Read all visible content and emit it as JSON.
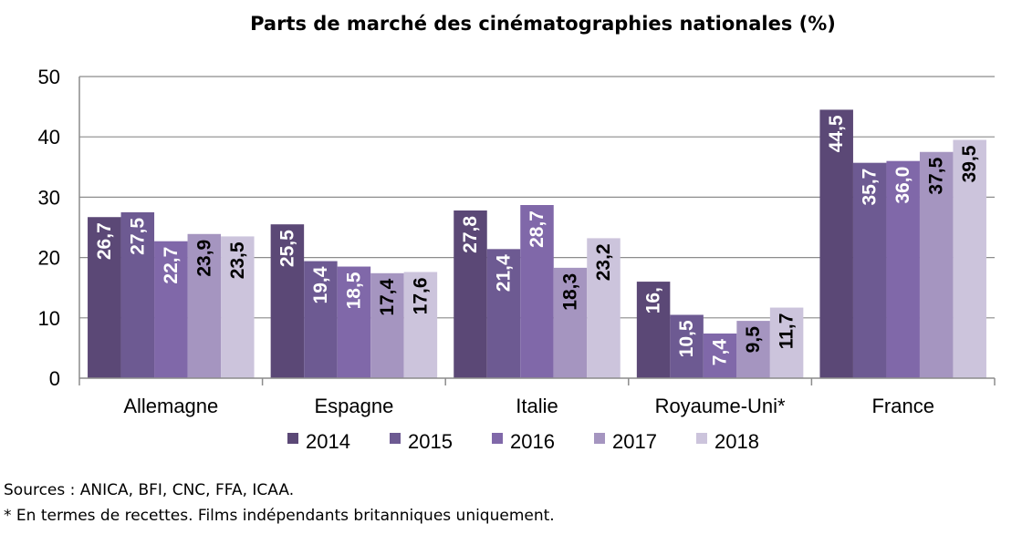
{
  "chart_data": {
    "type": "bar",
    "title": "Parts de marché des cinématographies nationales (%)",
    "categories": [
      "Allemagne",
      "Espagne",
      "Italie",
      "Royaume-Uni*",
      "France"
    ],
    "ylim": [
      0,
      50
    ],
    "yticks": [
      0,
      10,
      20,
      30,
      40,
      50
    ],
    "grid": true,
    "legend_position": "bottom",
    "series": [
      {
        "name": "2014",
        "color": "#5b4876",
        "values": [
          26.7,
          25.5,
          27.8,
          16,
          44.5
        ],
        "labels": [
          "26,7",
          "25,5",
          "27,8",
          "16,",
          "44,5"
        ]
      },
      {
        "name": "2015",
        "color": "#6d5a92",
        "values": [
          27.5,
          19.4,
          21.4,
          10.5,
          35.7
        ],
        "labels": [
          "27,5",
          "19,4",
          "21,4",
          "10,5",
          "35,7"
        ]
      },
      {
        "name": "2016",
        "color": "#8068a9",
        "values": [
          22.7,
          18.5,
          28.7,
          7.4,
          36.0
        ],
        "labels": [
          "22,7",
          "18,5",
          "28,7",
          "7,4",
          "36,0"
        ]
      },
      {
        "name": "2017",
        "color": "#a595c0",
        "values": [
          23.9,
          17.4,
          18.3,
          9.5,
          37.5
        ],
        "labels": [
          "23,9",
          "17,4",
          "18,3",
          "9,5",
          "37,5"
        ]
      },
      {
        "name": "2018",
        "color": "#ccc4dc",
        "values": [
          23.5,
          17.6,
          23.2,
          11.7,
          39.5
        ],
        "labels": [
          "23,5",
          "17,6",
          "23,2",
          "11,7",
          "39,5"
        ]
      }
    ],
    "label_colors": [
      "#ffffff",
      "#ffffff",
      "#ffffff",
      "#000000",
      "#000000"
    ]
  },
  "footer": {
    "sources": "Sources : ANICA, BFI, CNC, FFA, ICAA.",
    "note": "* En termes de recettes. Films indépendants britanniques uniquement."
  }
}
